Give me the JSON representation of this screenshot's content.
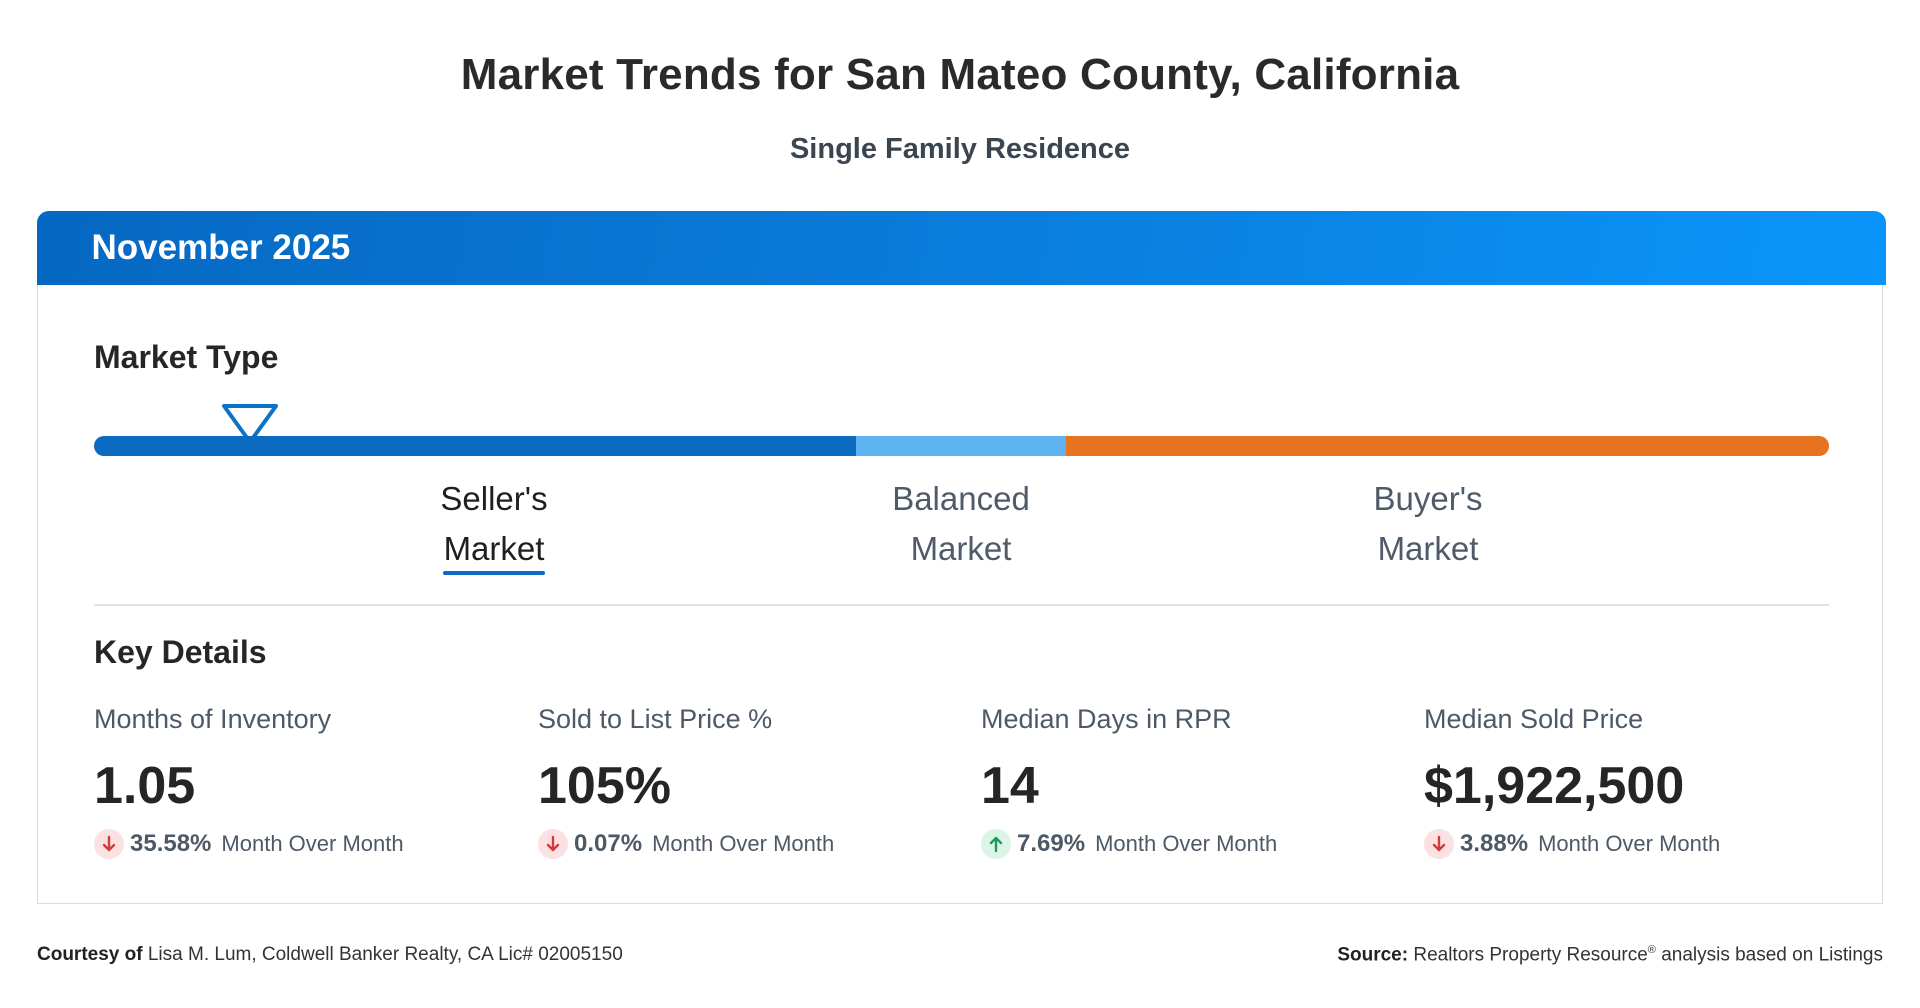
{
  "header": {
    "title": "Market Trends for San Mateo County, California",
    "subtitle": "Single Family Residence"
  },
  "card": {
    "period": "November 2025",
    "market_type_heading": "Market Type",
    "market_position": 0.08,
    "market_labels": [
      {
        "line1": "Seller's",
        "line2": "Market",
        "active": true
      },
      {
        "line1": "Balanced",
        "line2": "Market",
        "active": false
      },
      {
        "line1": "Buyer's",
        "line2": "Market",
        "active": false
      }
    ],
    "colors": {
      "seller": "#0a6bc0",
      "balanced": "#5fb3f3",
      "buyer": "#e5731f",
      "down": "#d33a3a",
      "up": "#1f9a5a"
    },
    "key_details_heading": "Key Details",
    "metrics": [
      {
        "label": "Months of Inventory",
        "value": "1.05",
        "direction": "down",
        "change": "35.58%",
        "change_text": "Month Over Month"
      },
      {
        "label": "Sold to List Price %",
        "value": "105%",
        "direction": "down",
        "change": "0.07%",
        "change_text": "Month Over Month"
      },
      {
        "label": "Median Days in RPR",
        "value": "14",
        "direction": "up",
        "change": "7.69%",
        "change_text": "Month Over Month"
      },
      {
        "label": "Median Sold Price",
        "value": "$1,922,500",
        "direction": "down",
        "change": "3.88%",
        "change_text": "Month Over Month"
      }
    ]
  },
  "footer": {
    "courtesy_label": "Courtesy of",
    "courtesy_text": "Lisa M. Lum, Coldwell Banker Realty, CA Lic# 02005150",
    "source_label": "Source:",
    "source_name": "Realtors Property Resource",
    "source_mark": "®",
    "source_text": "analysis based on Listings"
  }
}
